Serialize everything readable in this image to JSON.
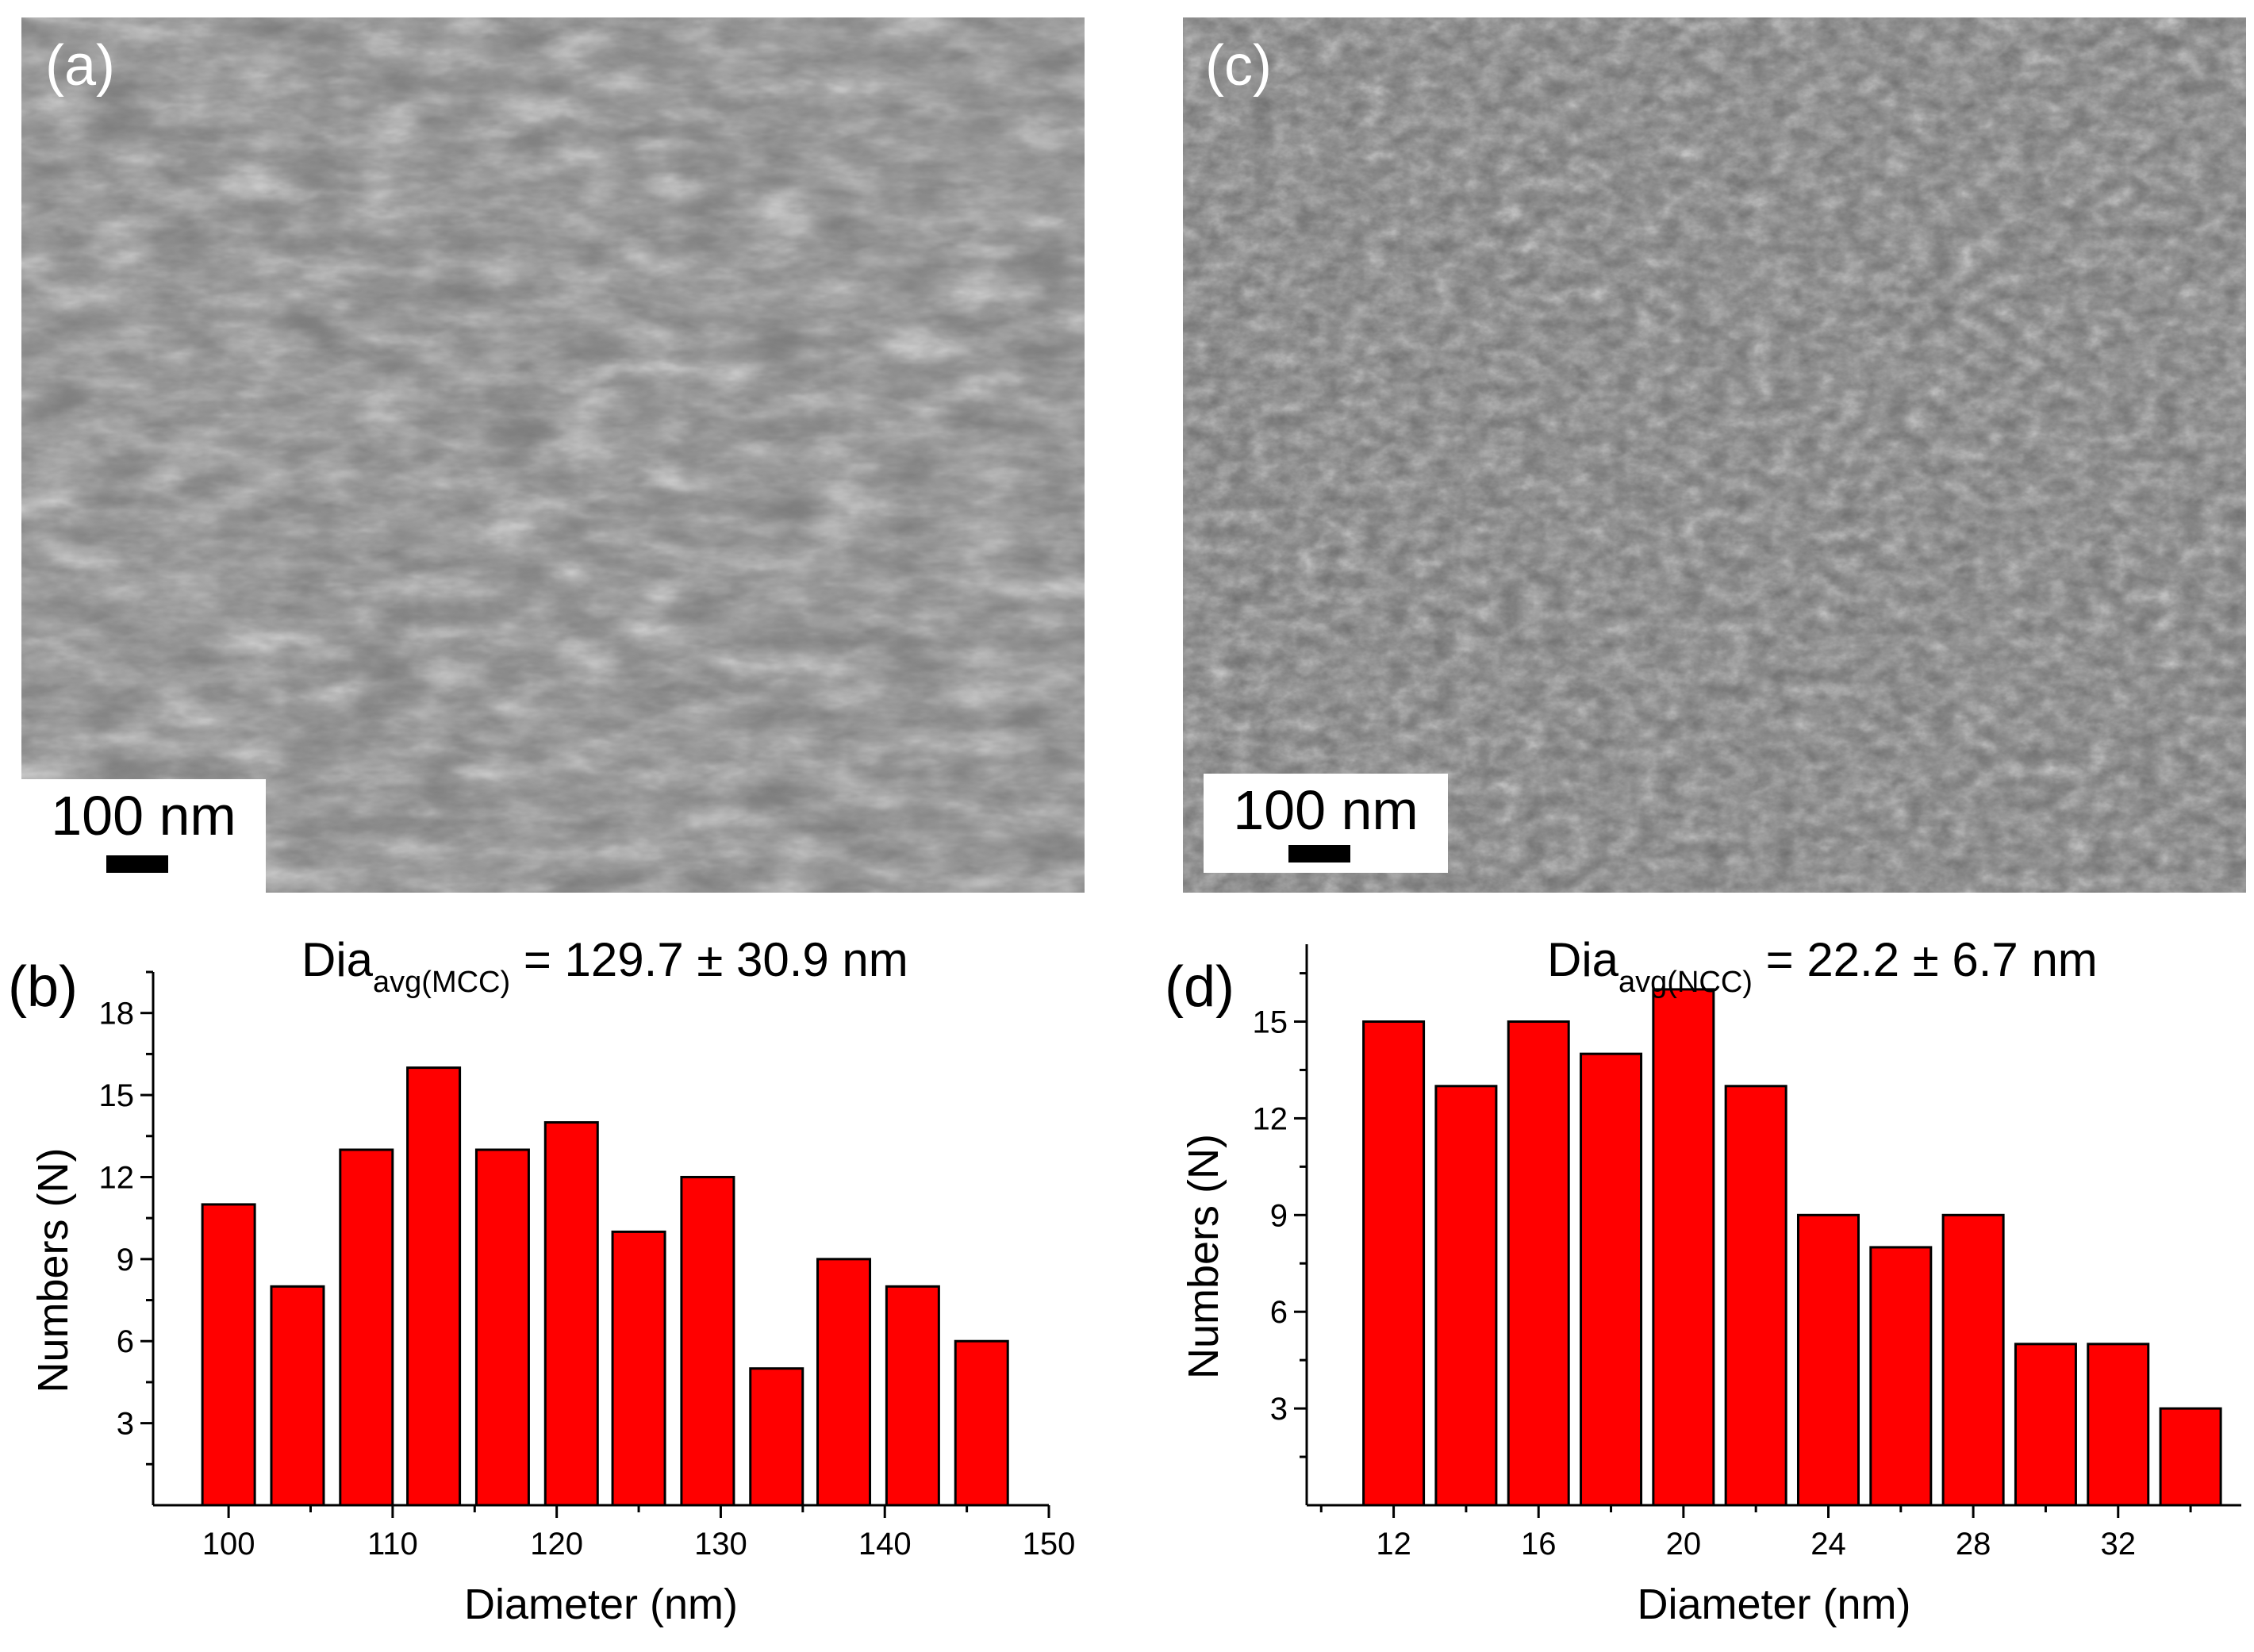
{
  "panels": {
    "a": {
      "letter": "(a)",
      "scale_label": "100 nm"
    },
    "c": {
      "letter": "(c)",
      "scale_label": "100 nm"
    }
  },
  "chart_data": [
    {
      "type": "bar",
      "panel_letter": "(b)",
      "title_main": "Dia",
      "title_sub": "avg(MCC)",
      "title_rest": " = 129.7 ± 30.9 nm",
      "xlabel": "Diameter (nm)",
      "ylabel": "Numbers (N)",
      "x": [
        100,
        104.2,
        108.4,
        112.5,
        116.7,
        120.9,
        125,
        129.2,
        133.4,
        137.5,
        141.7,
        145.9
      ],
      "values": [
        11,
        8,
        13,
        16,
        13,
        14,
        10,
        12,
        5,
        9,
        8,
        6
      ],
      "xlim": [
        95.4,
        150
      ],
      "ylim": [
        0,
        19.5
      ],
      "xticks": [
        100,
        110,
        120,
        130,
        140,
        150
      ],
      "yticks": [
        3,
        6,
        9,
        12,
        15,
        18
      ],
      "bar_color": "#ff0000",
      "grid": false
    },
    {
      "type": "bar",
      "panel_letter": "(d)",
      "title_main": "Dia",
      "title_sub": "avg(NCC)",
      "title_rest": " = 22.2 ± 6.7 nm",
      "xlabel": "Diameter (nm)",
      "ylabel": "Numbers (N)",
      "x": [
        12,
        14,
        16,
        18,
        20,
        22,
        24,
        26,
        28,
        30,
        32,
        34
      ],
      "values": [
        15,
        13,
        15,
        14,
        16,
        13,
        9,
        8,
        9,
        5,
        5,
        3
      ],
      "xlim": [
        9.6,
        35.4
      ],
      "ylim": [
        0,
        17.4
      ],
      "xticks": [
        12,
        16,
        20,
        24,
        28,
        32
      ],
      "yticks": [
        3,
        6,
        9,
        12,
        15
      ],
      "bar_color": "#ff0000",
      "grid": false
    }
  ]
}
